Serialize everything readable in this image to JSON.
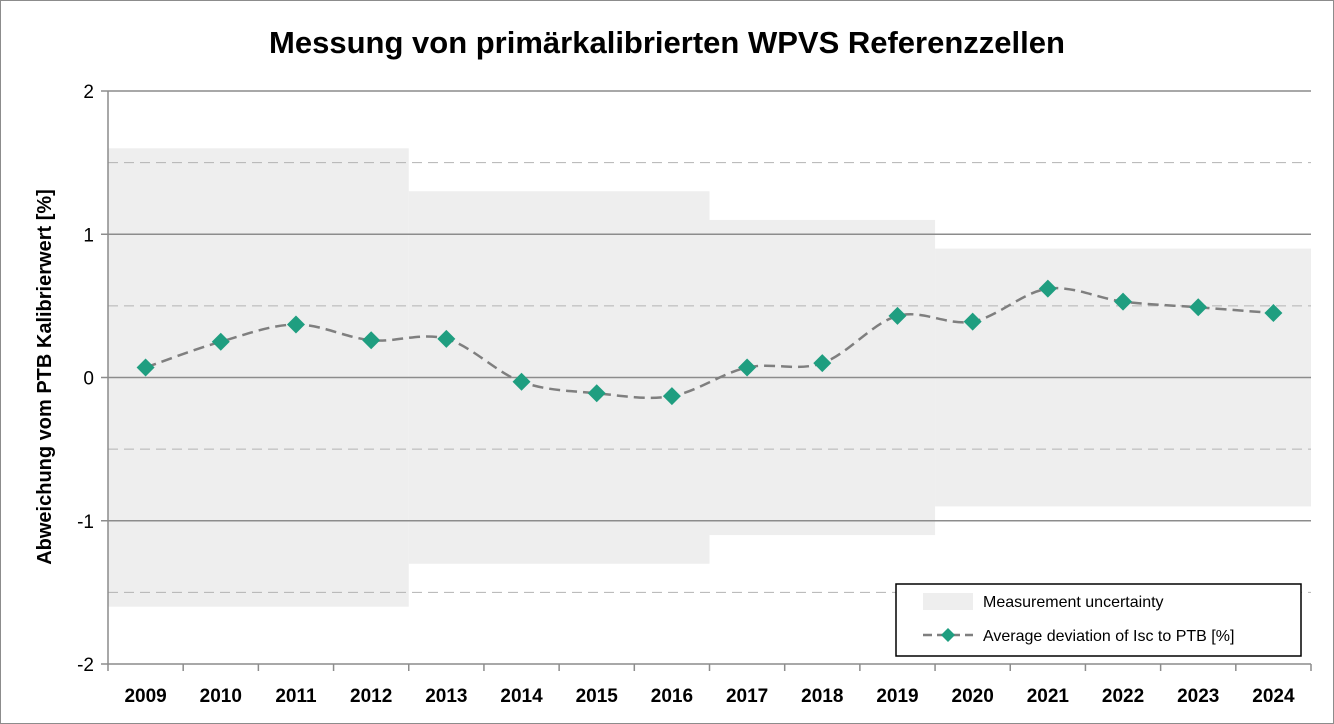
{
  "chart_data": {
    "type": "line",
    "title": "Messung von primärkalibrierten WPVS Referenzzellen",
    "ylabel": "Abweichung vom PTB Kalibrierwert [%]",
    "xlabel": "",
    "categories": [
      "2009",
      "2010",
      "2011",
      "2012",
      "2013",
      "2014",
      "2015",
      "2016",
      "2017",
      "2018",
      "2019",
      "2020",
      "2021",
      "2022",
      "2023",
      "2024"
    ],
    "ylim": [
      -2,
      2
    ],
    "yticks": [
      2,
      1,
      0,
      -1,
      -2
    ],
    "ytick_labels": [
      "2",
      "1",
      "0",
      "-1",
      "-2"
    ],
    "minor_gridlines": [
      1.5,
      0.5,
      -0.5,
      -1.5
    ],
    "grid": true,
    "legend_position": "bottom-right",
    "series": [
      {
        "name": "Average deviation of Isc to PTB [%]",
        "kind": "line-marker",
        "line_style": "dashed",
        "line_color": "#7f7f7f",
        "marker": "diamond",
        "marker_color": "#1f9e80",
        "values": [
          0.07,
          0.25,
          0.37,
          0.26,
          0.27,
          -0.03,
          -0.11,
          -0.13,
          0.07,
          0.1,
          0.43,
          0.39,
          0.62,
          0.53,
          0.49,
          0.45
        ]
      }
    ],
    "uncertainty_band": {
      "name": "Measurement uncertainty",
      "color": "#eeeeee",
      "segments": [
        {
          "from": "2009",
          "to": "2012",
          "half_width": 1.6
        },
        {
          "from": "2013",
          "to": "2016",
          "half_width": 1.3
        },
        {
          "from": "2017",
          "to": "2019",
          "half_width": 1.1
        },
        {
          "from": "2020",
          "to": "2024",
          "half_width": 0.9
        }
      ]
    }
  }
}
